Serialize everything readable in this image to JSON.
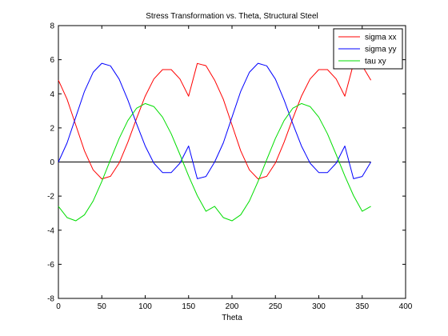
{
  "chart_data": {
    "type": "line",
    "title": "Stress Transformation vs. Theta, Structural Steel",
    "xlabel": "Theta",
    "ylabel": "",
    "xlim": [
      0,
      400
    ],
    "ylim": [
      -8,
      8
    ],
    "xticks": [
      0,
      50,
      100,
      150,
      200,
      250,
      300,
      350,
      400
    ],
    "yticks": [
      -8,
      -6,
      -4,
      -2,
      0,
      2,
      4,
      6,
      8
    ],
    "grid": false,
    "legend_position": "top-right",
    "x": [
      0,
      10,
      20,
      30,
      40,
      50,
      60,
      70,
      80,
      90,
      100,
      110,
      120,
      130,
      140,
      150,
      160,
      170,
      180,
      190,
      200,
      210,
      220,
      230,
      240,
      250,
      260,
      270,
      280,
      290,
      300,
      310,
      320,
      330,
      340,
      350,
      360
    ],
    "series": [
      {
        "name": "sigma xx",
        "color": "#ff0000",
        "values": [
          4.8,
          3.68,
          2.17,
          0.66,
          -0.46,
          -0.99,
          -0.84,
          -0.06,
          1.16,
          2.55,
          3.86,
          4.87,
          5.42,
          5.42,
          4.87,
          3.86,
          5.78,
          5.65,
          4.8,
          3.68,
          2.17,
          0.66,
          -0.46,
          -0.99,
          -0.84,
          -0.06,
          1.16,
          2.55,
          3.86,
          4.87,
          5.42,
          5.42,
          4.87,
          3.86,
          5.78,
          5.65,
          4.8
        ]
      },
      {
        "name": "sigma yy",
        "color": "#0000ff",
        "values": [
          0.0,
          1.12,
          2.63,
          4.14,
          5.26,
          5.79,
          5.64,
          4.86,
          3.64,
          2.25,
          0.94,
          -0.07,
          -0.62,
          -0.62,
          -0.07,
          0.94,
          -0.98,
          -0.85,
          0.0,
          1.12,
          2.63,
          4.14,
          5.26,
          5.79,
          5.64,
          4.86,
          3.64,
          2.25,
          0.94,
          -0.07,
          -0.62,
          -0.62,
          -0.07,
          0.94,
          -0.98,
          -0.85,
          0.0
        ]
      },
      {
        "name": "tau xy",
        "color": "#00dd00",
        "values": [
          -2.6,
          -3.26,
          -3.45,
          -3.1,
          -2.29,
          -1.14,
          0.14,
          1.38,
          2.43,
          3.15,
          3.43,
          3.25,
          2.63,
          1.65,
          0.44,
          -0.82,
          -1.97,
          -2.89,
          -2.6,
          -3.26,
          -3.45,
          -3.1,
          -2.29,
          -1.14,
          0.14,
          1.38,
          2.43,
          3.15,
          3.43,
          3.25,
          2.63,
          1.65,
          0.44,
          -0.82,
          -1.97,
          -2.89,
          -2.6
        ]
      }
    ],
    "reference_line": {
      "y": 0,
      "x_from": 0,
      "x_to": 360,
      "color": "#000000"
    }
  }
}
